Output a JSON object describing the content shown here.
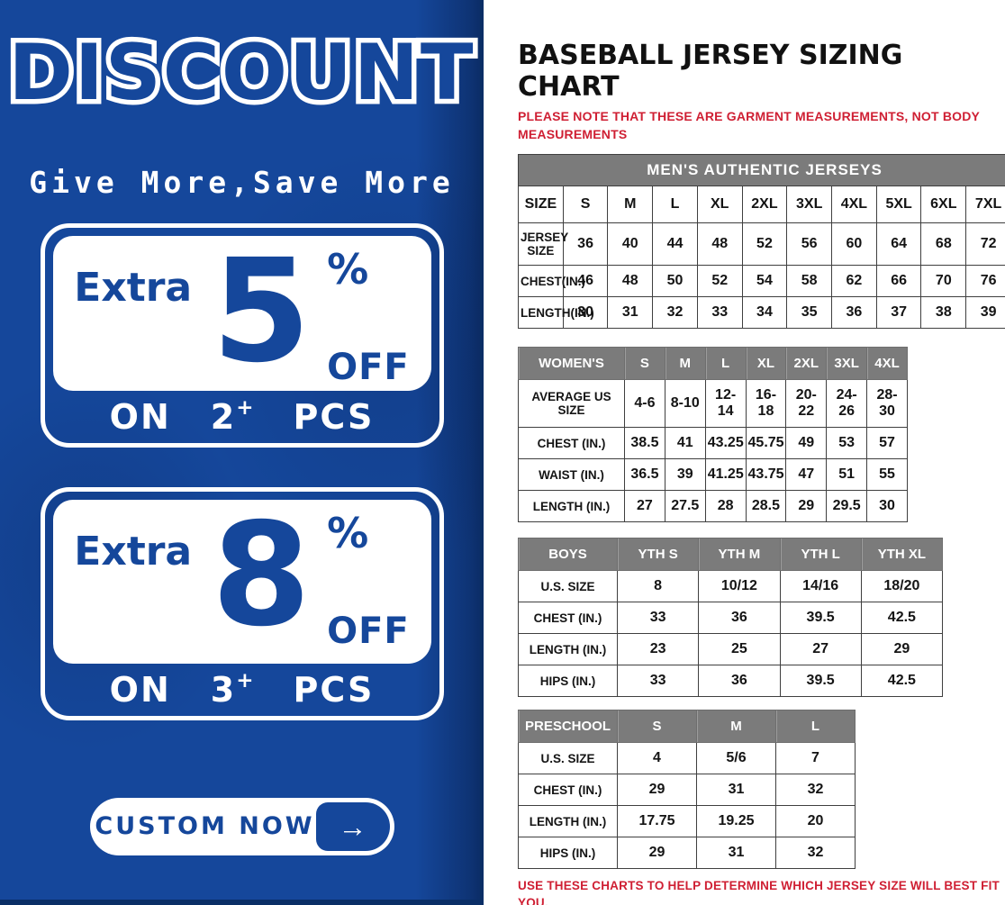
{
  "colors": {
    "blue": "#15479b",
    "navy": "#0a2e66",
    "header_gray": "#7b7b7b",
    "note_red": "#cf1f33"
  },
  "left_panel": {
    "title": "DISCOUNT",
    "subtitle": "Give More,Save More",
    "offers": [
      {
        "prefix": "Extra",
        "percent": "5",
        "percent_sign": "%",
        "off_label": "OFF",
        "on_label": "ON",
        "qty": "2",
        "plus": "+",
        "pcs_label": "PCS"
      },
      {
        "prefix": "Extra",
        "percent": "8",
        "percent_sign": "%",
        "off_label": "OFF",
        "on_label": "ON",
        "qty": "3",
        "plus": "+",
        "pcs_label": "PCS"
      }
    ],
    "cta": {
      "label": "CUSTOM NOW",
      "arrow": "→"
    }
  },
  "right_panel": {
    "title": "BASEBALL JERSEY SIZING CHART",
    "note_top": "PLEASE NOTE THAT THESE ARE GARMENT MEASUREMENTS, NOT BODY MEASUREMENTS",
    "note_bottom": "USE THESE CHARTS TO HELP DETERMINE WHICH JERSEY SIZE WILL BEST FIT YOU.",
    "tables": {
      "mens": {
        "banner": "MEN'S AUTHENTIC JERSEYS",
        "columns": [
          "SIZE",
          "S",
          "M",
          "L",
          "XL",
          "2XL",
          "3XL",
          "4XL",
          "5XL",
          "6XL",
          "7XL"
        ],
        "rows": [
          {
            "label": "JERSEY SIZE",
            "values": [
              "36",
              "40",
              "44",
              "48",
              "52",
              "56",
              "60",
              "64",
              "68",
              "72"
            ]
          },
          {
            "label": "CHEST(IN.)",
            "values": [
              "46",
              "48",
              "50",
              "52",
              "54",
              "58",
              "62",
              "66",
              "70",
              "76"
            ]
          },
          {
            "label": "LENGTH(IN.)",
            "values": [
              "30",
              "31",
              "32",
              "33",
              "34",
              "35",
              "36",
              "37",
              "38",
              "39"
            ]
          }
        ]
      },
      "womens": {
        "header": [
          "WOMEN'S",
          "S",
          "M",
          "L",
          "XL",
          "2XL",
          "3XL",
          "4XL"
        ],
        "rows": [
          {
            "label": "AVERAGE US SIZE",
            "values": [
              "4-6",
              "8-10",
              "12-14",
              "16-18",
              "20-22",
              "24-26",
              "28-30"
            ]
          },
          {
            "label": "CHEST (IN.)",
            "values": [
              "38.5",
              "41",
              "43.25",
              "45.75",
              "49",
              "53",
              "57"
            ]
          },
          {
            "label": "WAIST (IN.)",
            "values": [
              "36.5",
              "39",
              "41.25",
              "43.75",
              "47",
              "51",
              "55"
            ]
          },
          {
            "label": "LENGTH (IN.)",
            "values": [
              "27",
              "27.5",
              "28",
              "28.5",
              "29",
              "29.5",
              "30"
            ]
          }
        ]
      },
      "boys": {
        "header": [
          "BOYS",
          "YTH S",
          "YTH M",
          "YTH L",
          "YTH XL"
        ],
        "rows": [
          {
            "label": "U.S. SIZE",
            "values": [
              "8",
              "10/12",
              "14/16",
              "18/20"
            ]
          },
          {
            "label": "CHEST (IN.)",
            "values": [
              "33",
              "36",
              "39.5",
              "42.5"
            ]
          },
          {
            "label": "LENGTH (IN.)",
            "values": [
              "23",
              "25",
              "27",
              "29"
            ]
          },
          {
            "label": "HIPS (IN.)",
            "values": [
              "33",
              "36",
              "39.5",
              "42.5"
            ]
          }
        ]
      },
      "preschool": {
        "header": [
          "PRESCHOOL",
          "S",
          "M",
          "L"
        ],
        "rows": [
          {
            "label": "U.S. SIZE",
            "values": [
              "4",
              "5/6",
              "7"
            ]
          },
          {
            "label": "CHEST (IN.)",
            "values": [
              "29",
              "31",
              "32"
            ]
          },
          {
            "label": "LENGTH (IN.)",
            "values": [
              "17.75",
              "19.25",
              "20"
            ]
          },
          {
            "label": "HIPS (IN.)",
            "values": [
              "29",
              "31",
              "32"
            ]
          }
        ]
      }
    }
  }
}
